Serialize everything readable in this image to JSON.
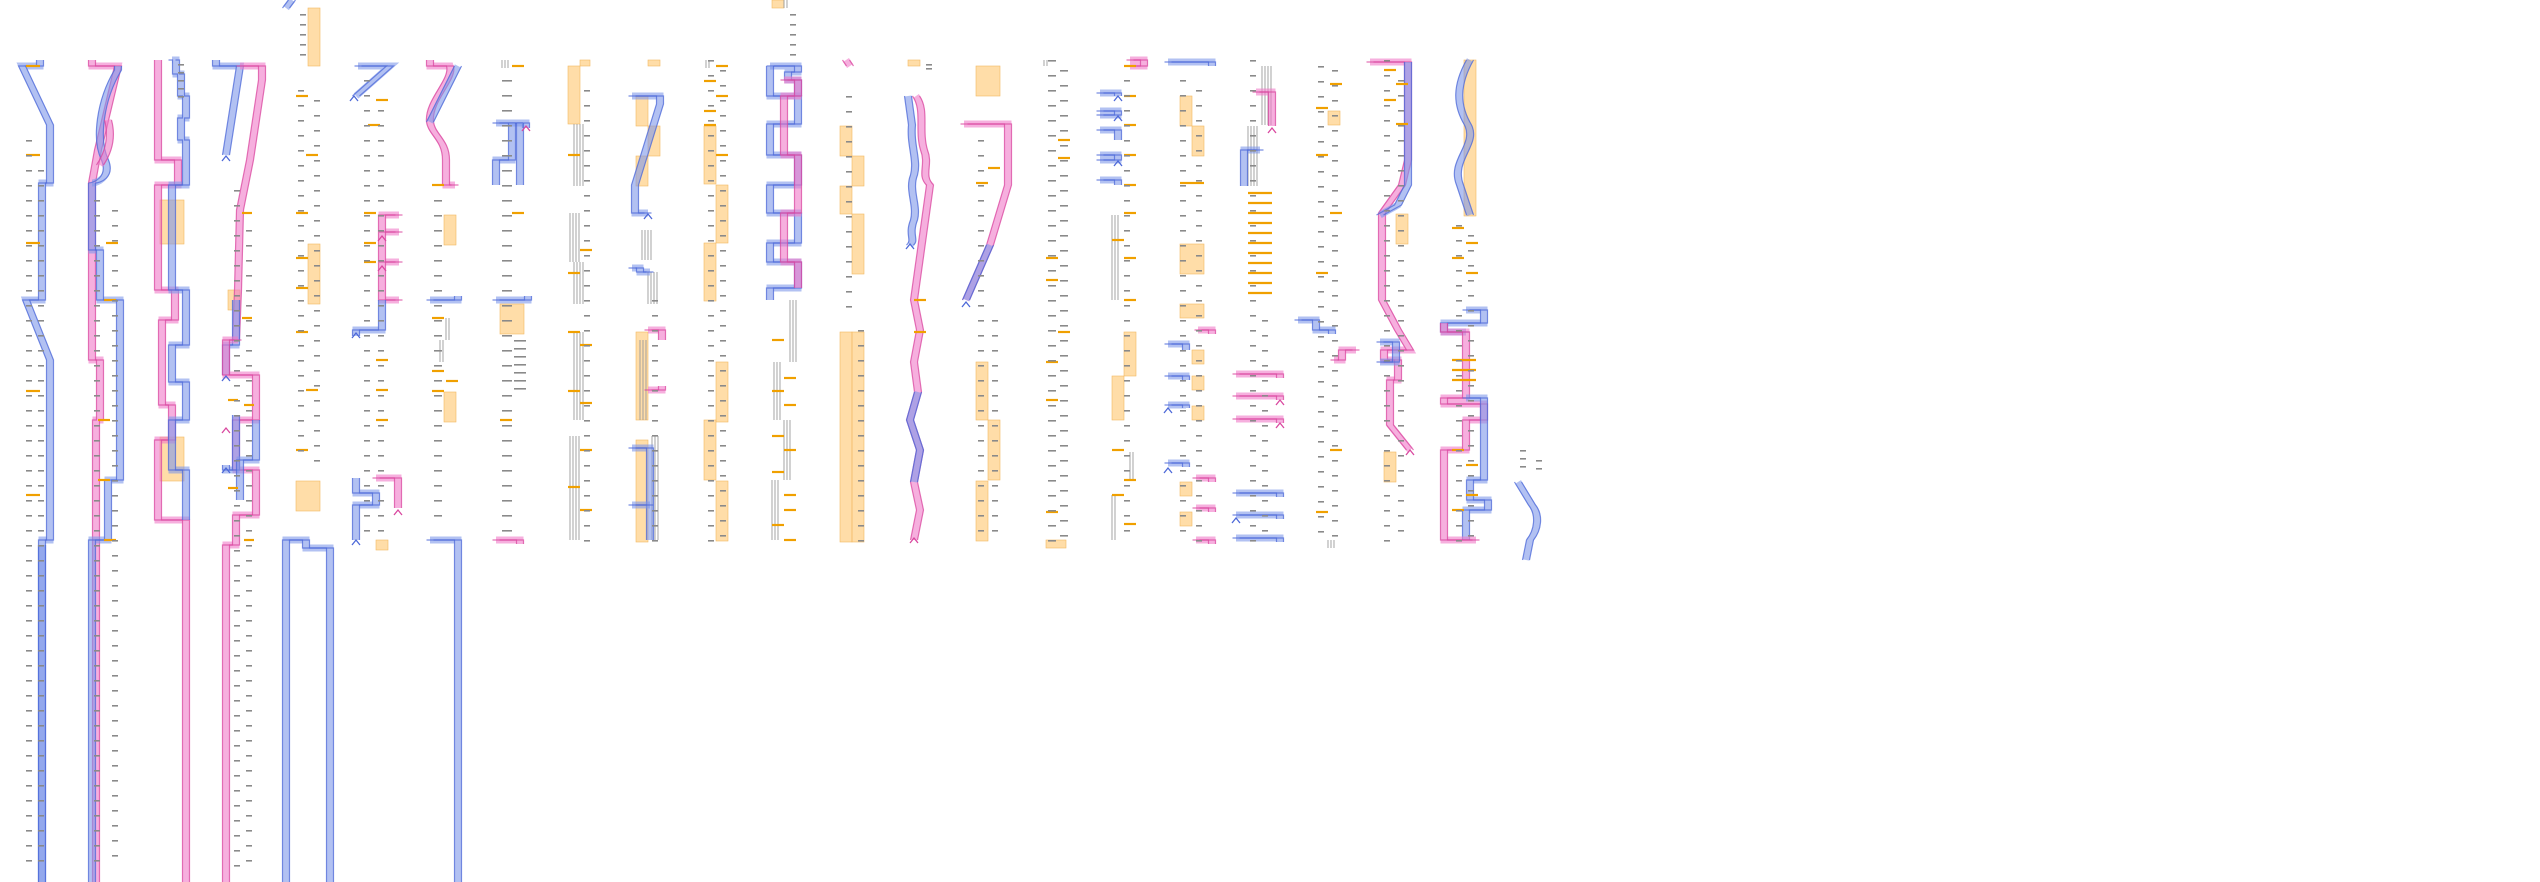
{
  "canvas": {
    "background": "#ffffff"
  },
  "palette": {
    "blue": "#7f98ea",
    "blue_edge": "#4c68d8",
    "pink": "#f07ac8",
    "pink_edge": "#d9479f",
    "block": "#ffc872",
    "orange_tick": "#f0a000",
    "gray_line": "#9a9a9a",
    "tiny_mark": "#8a8a8a"
  },
  "legend": {
    "visible": false
  },
  "element_kinds": [
    "blue-path",
    "pink-path",
    "orange-block",
    "orange-tick",
    "gray-vertical-line",
    "tiny-label-mark",
    "chevron-icon"
  ]
}
